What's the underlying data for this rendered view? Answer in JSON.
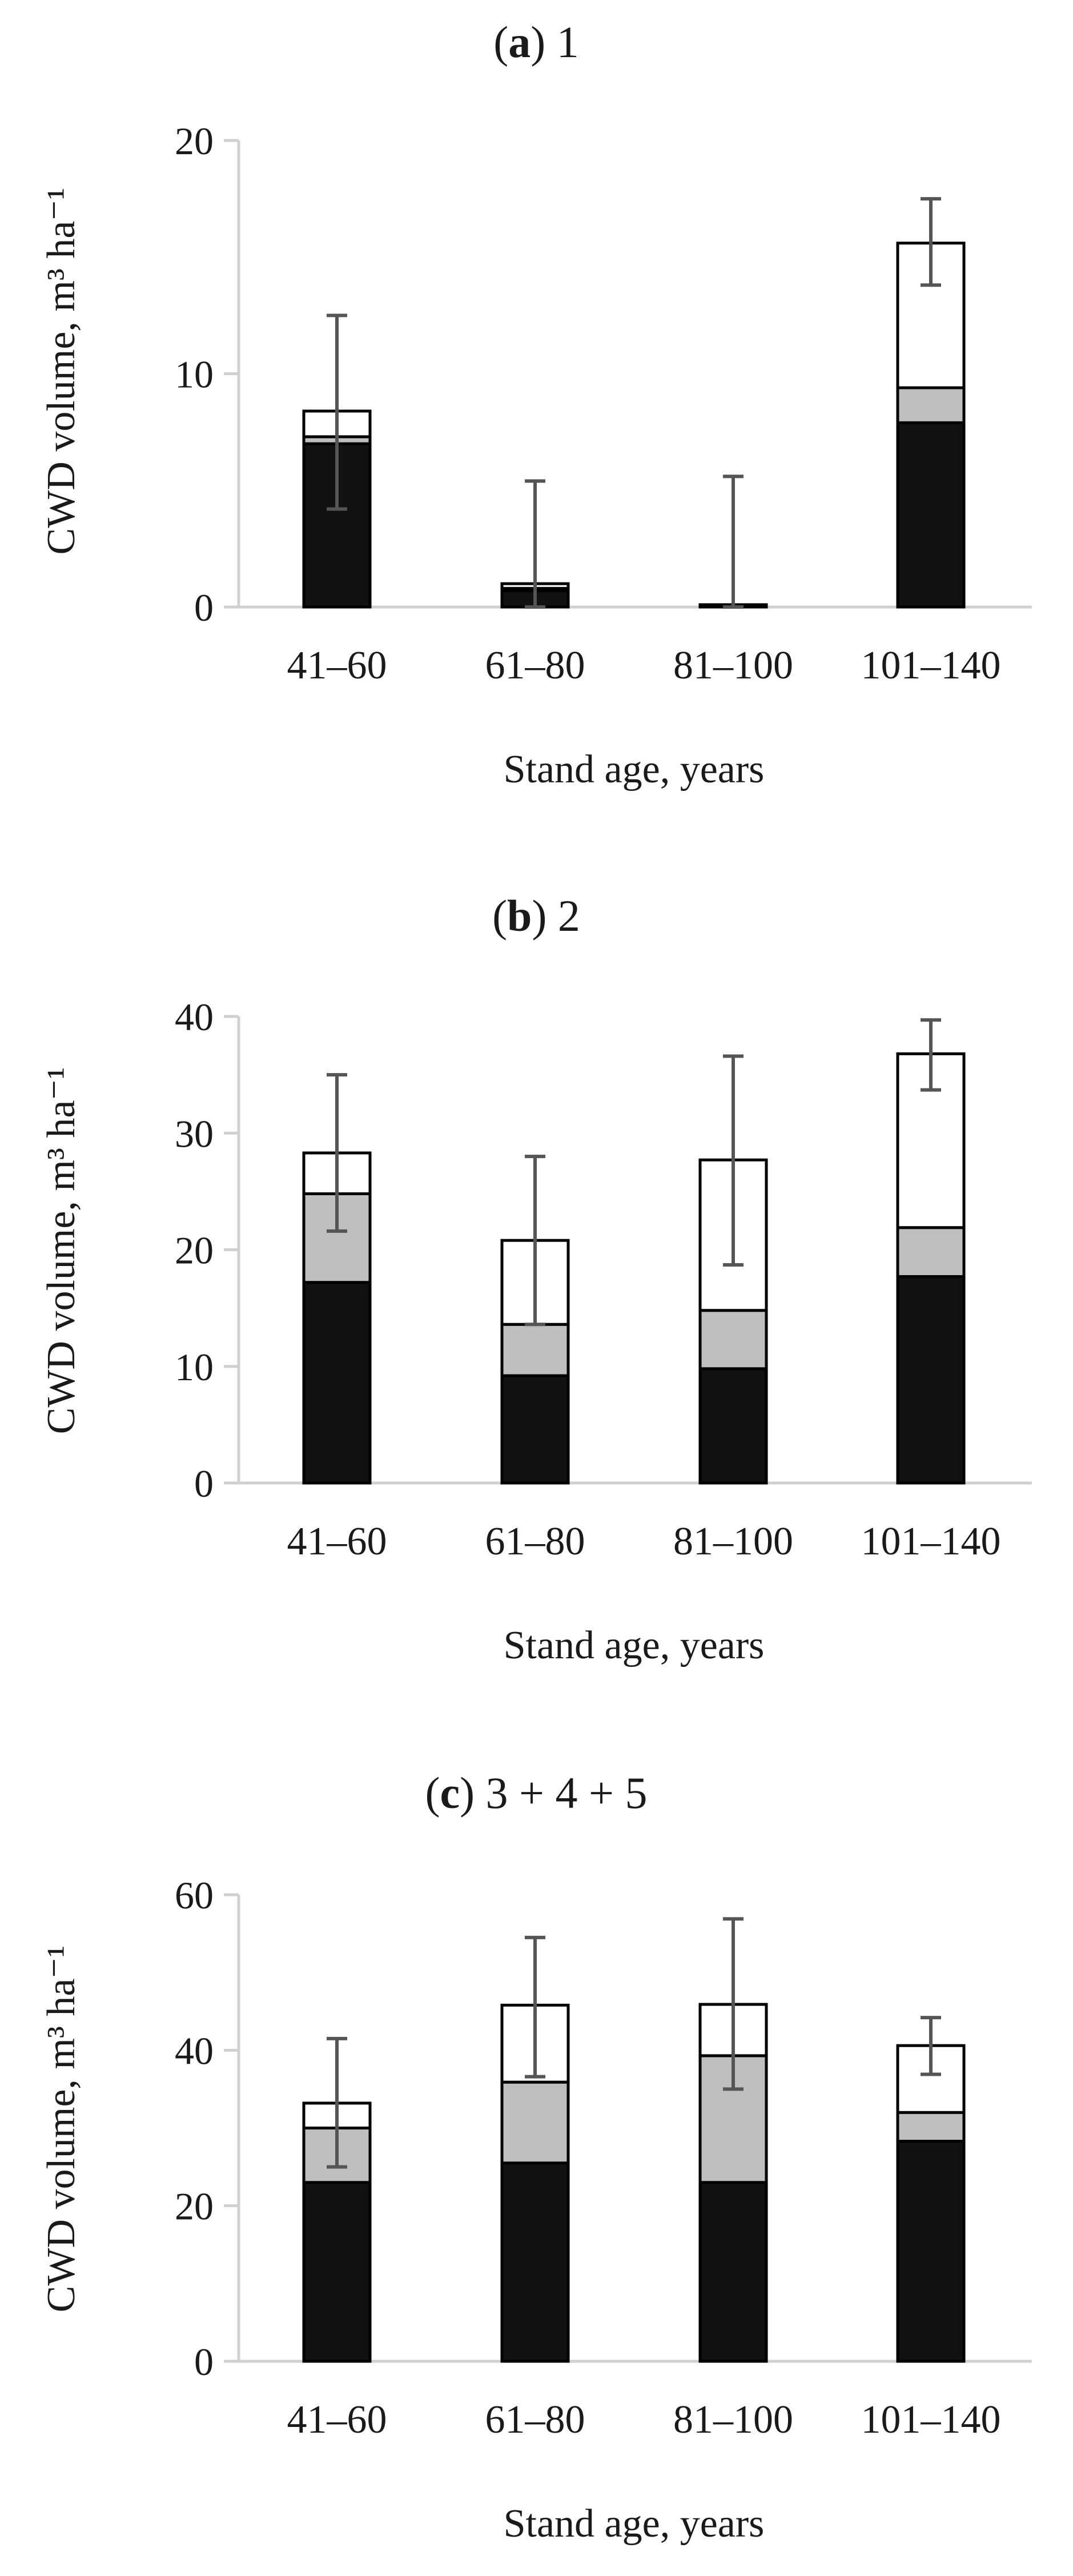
{
  "chart_data": [
    {
      "type": "bar",
      "stacked": true,
      "title_prefix": "(",
      "title_letter": "a",
      "title_suffix": ") 1",
      "xlabel": "Stand age, years",
      "ylabel": "CWD volume, m³ ha⁻¹",
      "ylim": [
        0,
        20
      ],
      "yticks": [
        0,
        10,
        20
      ],
      "categories": [
        "41–60",
        "61–80",
        "81–100",
        "101–140"
      ],
      "series": [
        {
          "name": "Black",
          "color": "#111111",
          "values": [
            7.0,
            0.7,
            0.0,
            7.9
          ]
        },
        {
          "name": "Grey",
          "color": "#bfbfbf",
          "values": [
            0.3,
            0.1,
            0.0,
            1.5
          ]
        },
        {
          "name": "White",
          "color": "#ffffff",
          "values": [
            1.1,
            0.2,
            0.1,
            6.2
          ]
        }
      ],
      "error_bars": [
        {
          "low": 4.2,
          "high": 12.5
        },
        {
          "low": 0.0,
          "high": 5.4
        },
        {
          "low": 0.0,
          "high": 5.6
        },
        {
          "low": 13.8,
          "high": 17.5
        }
      ]
    },
    {
      "type": "bar",
      "stacked": true,
      "title_prefix": "(",
      "title_letter": "b",
      "title_suffix": ") 2",
      "xlabel": "Stand age, years",
      "ylabel": "CWD volume, m³ ha⁻¹",
      "ylim": [
        0,
        40
      ],
      "yticks": [
        0,
        10,
        20,
        30,
        40
      ],
      "categories": [
        "41–60",
        "61–80",
        "81–100",
        "101–140"
      ],
      "series": [
        {
          "name": "Black",
          "color": "#111111",
          "values": [
            17.2,
            9.2,
            9.8,
            17.7
          ]
        },
        {
          "name": "Grey",
          "color": "#bfbfbf",
          "values": [
            7.6,
            4.4,
            5.0,
            4.2
          ]
        },
        {
          "name": "White",
          "color": "#ffffff",
          "values": [
            3.5,
            7.2,
            12.9,
            14.9
          ]
        }
      ],
      "error_bars": [
        {
          "low": 21.6,
          "high": 35.0
        },
        {
          "low": 13.6,
          "high": 28.0
        },
        {
          "low": 18.7,
          "high": 36.6
        },
        {
          "low": 33.7,
          "high": 39.7
        }
      ]
    },
    {
      "type": "bar",
      "stacked": true,
      "title_prefix": "(",
      "title_letter": "c",
      "title_suffix": ") 3 + 4 + 5",
      "xlabel": "Stand age, years",
      "ylabel": "CWD volume, m³ ha⁻¹",
      "ylim": [
        0,
        60
      ],
      "yticks": [
        0,
        20,
        40,
        60
      ],
      "categories": [
        "41–60",
        "61–80",
        "81–100",
        "101–140"
      ],
      "series": [
        {
          "name": "Black",
          "color": "#111111",
          "values": [
            23.0,
            25.5,
            23.0,
            28.3
          ]
        },
        {
          "name": "Grey",
          "color": "#bfbfbf",
          "values": [
            7.0,
            10.4,
            16.3,
            3.7
          ]
        },
        {
          "name": "White",
          "color": "#ffffff",
          "values": [
            3.2,
            9.9,
            6.6,
            8.6
          ]
        }
      ],
      "error_bars": [
        {
          "low": 25.0,
          "high": 41.5
        },
        {
          "low": 36.6,
          "high": 54.5
        },
        {
          "low": 35.0,
          "high": 56.9
        },
        {
          "low": 36.9,
          "high": 44.2
        }
      ]
    }
  ]
}
